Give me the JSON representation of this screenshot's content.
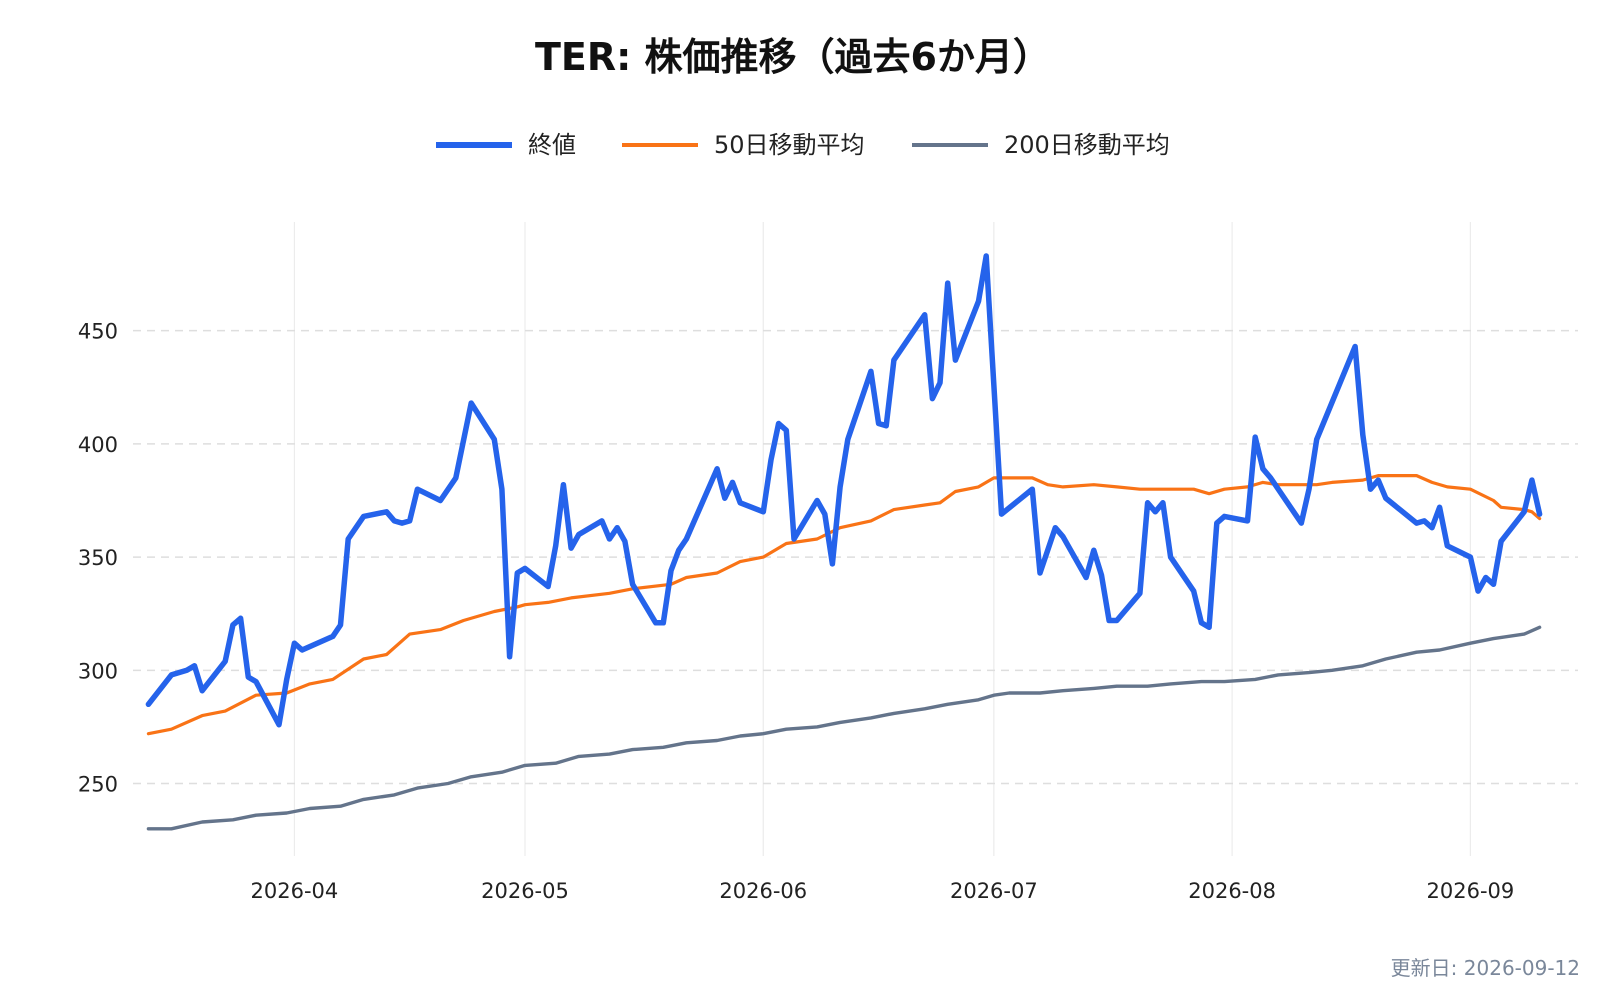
{
  "chart_data": {
    "type": "line",
    "title": "TER: 株価推移（過去6か月）",
    "xlabel": "",
    "ylabel": "",
    "xlim": [
      "2026-03-11",
      "2026-09-15"
    ],
    "ylim": [
      218,
      498
    ],
    "x_ticks": [
      "2026-04-01",
      "2026-05-01",
      "2026-06-01",
      "2026-07-01",
      "2026-08-01",
      "2026-09-01"
    ],
    "x_tick_labels": [
      "2026-04",
      "2026-05",
      "2026-06",
      "2026-07",
      "2026-08",
      "2026-09"
    ],
    "y_ticks": [
      250,
      300,
      350,
      400,
      450
    ],
    "grid": {
      "horizontal": true,
      "vertical": true,
      "horizontal_style": "dashed"
    },
    "legend": {
      "position": "top-center"
    },
    "footnote": "更新日: 2026-09-12",
    "series": [
      {
        "name": "終値",
        "color": "#2563eb",
        "points": [
          [
            "2026-03-13",
            285
          ],
          [
            "2026-03-16",
            298
          ],
          [
            "2026-03-18",
            300
          ],
          [
            "2026-03-19",
            302
          ],
          [
            "2026-03-20",
            291
          ],
          [
            "2026-03-23",
            304
          ],
          [
            "2026-03-24",
            320
          ],
          [
            "2026-03-25",
            323
          ],
          [
            "2026-03-26",
            297
          ],
          [
            "2026-03-27",
            295
          ],
          [
            "2026-03-30",
            276
          ],
          [
            "2026-03-31",
            296
          ],
          [
            "2026-04-01",
            312
          ],
          [
            "2026-04-02",
            309
          ],
          [
            "2026-04-06",
            315
          ],
          [
            "2026-04-07",
            320
          ],
          [
            "2026-04-08",
            358
          ],
          [
            "2026-04-09",
            363
          ],
          [
            "2026-04-10",
            368
          ],
          [
            "2026-04-13",
            370
          ],
          [
            "2026-04-14",
            366
          ],
          [
            "2026-04-15",
            365
          ],
          [
            "2026-04-16",
            366
          ],
          [
            "2026-04-17",
            380
          ],
          [
            "2026-04-20",
            375
          ],
          [
            "2026-04-22",
            385
          ],
          [
            "2026-04-24",
            418
          ],
          [
            "2026-04-27",
            402
          ],
          [
            "2026-04-28",
            380
          ],
          [
            "2026-04-29",
            306
          ],
          [
            "2026-04-30",
            343
          ],
          [
            "2026-05-01",
            345
          ],
          [
            "2026-05-04",
            337
          ],
          [
            "2026-05-05",
            355
          ],
          [
            "2026-05-06",
            382
          ],
          [
            "2026-05-07",
            354
          ],
          [
            "2026-05-08",
            360
          ],
          [
            "2026-05-11",
            366
          ],
          [
            "2026-05-12",
            358
          ],
          [
            "2026-05-13",
            363
          ],
          [
            "2026-05-14",
            357
          ],
          [
            "2026-05-15",
            338
          ],
          [
            "2026-05-18",
            321
          ],
          [
            "2026-05-19",
            321
          ],
          [
            "2026-05-20",
            344
          ],
          [
            "2026-05-21",
            353
          ],
          [
            "2026-05-22",
            358
          ],
          [
            "2026-05-26",
            389
          ],
          [
            "2026-05-27",
            376
          ],
          [
            "2026-05-28",
            383
          ],
          [
            "2026-05-29",
            374
          ],
          [
            "2026-06-01",
            370
          ],
          [
            "2026-06-02",
            393
          ],
          [
            "2026-06-03",
            409
          ],
          [
            "2026-06-04",
            406
          ],
          [
            "2026-06-05",
            358
          ],
          [
            "2026-06-08",
            375
          ],
          [
            "2026-06-09",
            369
          ],
          [
            "2026-06-10",
            347
          ],
          [
            "2026-06-11",
            381
          ],
          [
            "2026-06-12",
            402
          ],
          [
            "2026-06-15",
            432
          ],
          [
            "2026-06-16",
            409
          ],
          [
            "2026-06-17",
            408
          ],
          [
            "2026-06-18",
            437
          ],
          [
            "2026-06-22",
            457
          ],
          [
            "2026-06-23",
            420
          ],
          [
            "2026-06-24",
            427
          ],
          [
            "2026-06-25",
            471
          ],
          [
            "2026-06-26",
            437
          ],
          [
            "2026-06-29",
            463
          ],
          [
            "2026-06-30",
            483
          ],
          [
            "2026-07-02",
            369
          ],
          [
            "2026-07-06",
            380
          ],
          [
            "2026-07-07",
            343
          ],
          [
            "2026-07-08",
            353
          ],
          [
            "2026-07-09",
            363
          ],
          [
            "2026-07-10",
            359
          ],
          [
            "2026-07-13",
            341
          ],
          [
            "2026-07-14",
            353
          ],
          [
            "2026-07-15",
            342
          ],
          [
            "2026-07-16",
            322
          ],
          [
            "2026-07-17",
            322
          ],
          [
            "2026-07-20",
            334
          ],
          [
            "2026-07-21",
            374
          ],
          [
            "2026-07-22",
            370
          ],
          [
            "2026-07-23",
            374
          ],
          [
            "2026-07-24",
            350
          ],
          [
            "2026-07-27",
            335
          ],
          [
            "2026-07-28",
            321
          ],
          [
            "2026-07-29",
            319
          ],
          [
            "2026-07-30",
            365
          ],
          [
            "2026-07-31",
            368
          ],
          [
            "2026-08-03",
            366
          ],
          [
            "2026-08-04",
            403
          ],
          [
            "2026-08-05",
            389
          ],
          [
            "2026-08-06",
            385
          ],
          [
            "2026-08-10",
            365
          ],
          [
            "2026-08-11",
            380
          ],
          [
            "2026-08-12",
            402
          ],
          [
            "2026-08-17",
            443
          ],
          [
            "2026-08-18",
            404
          ],
          [
            "2026-08-19",
            380
          ],
          [
            "2026-08-20",
            384
          ],
          [
            "2026-08-21",
            376
          ],
          [
            "2026-08-25",
            365
          ],
          [
            "2026-08-26",
            366
          ],
          [
            "2026-08-27",
            363
          ],
          [
            "2026-08-28",
            372
          ],
          [
            "2026-08-29",
            355
          ],
          [
            "2026-09-01",
            350
          ],
          [
            "2026-09-02",
            335
          ],
          [
            "2026-09-03",
            341
          ],
          [
            "2026-09-04",
            338
          ],
          [
            "2026-09-05",
            357
          ],
          [
            "2026-09-08",
            370
          ],
          [
            "2026-09-09",
            384
          ],
          [
            "2026-09-10",
            369
          ]
        ]
      },
      {
        "name": "50日移動平均",
        "color": "#f97316",
        "points": [
          [
            "2026-03-13",
            272
          ],
          [
            "2026-03-16",
            274
          ],
          [
            "2026-03-20",
            280
          ],
          [
            "2026-03-23",
            282
          ],
          [
            "2026-03-27",
            289
          ],
          [
            "2026-03-31",
            290
          ],
          [
            "2026-04-03",
            294
          ],
          [
            "2026-04-06",
            296
          ],
          [
            "2026-04-10",
            305
          ],
          [
            "2026-04-13",
            307
          ],
          [
            "2026-04-16",
            316
          ],
          [
            "2026-04-20",
            318
          ],
          [
            "2026-04-23",
            322
          ],
          [
            "2026-04-27",
            326
          ],
          [
            "2026-04-30",
            328
          ],
          [
            "2026-05-01",
            329
          ],
          [
            "2026-05-04",
            330
          ],
          [
            "2026-05-07",
            332
          ],
          [
            "2026-05-12",
            334
          ],
          [
            "2026-05-15",
            336
          ],
          [
            "2026-05-20",
            338
          ],
          [
            "2026-05-22",
            341
          ],
          [
            "2026-05-26",
            343
          ],
          [
            "2026-05-29",
            348
          ],
          [
            "2026-06-01",
            350
          ],
          [
            "2026-06-04",
            356
          ],
          [
            "2026-06-08",
            358
          ],
          [
            "2026-06-11",
            363
          ],
          [
            "2026-06-15",
            366
          ],
          [
            "2026-06-18",
            371
          ],
          [
            "2026-06-22",
            373
          ],
          [
            "2026-06-24",
            374
          ],
          [
            "2026-06-26",
            379
          ],
          [
            "2026-06-29",
            381
          ],
          [
            "2026-07-01",
            385
          ],
          [
            "2026-07-03",
            385
          ],
          [
            "2026-07-06",
            385
          ],
          [
            "2026-07-08",
            382
          ],
          [
            "2026-07-10",
            381
          ],
          [
            "2026-07-14",
            382
          ],
          [
            "2026-07-17",
            381
          ],
          [
            "2026-07-20",
            380
          ],
          [
            "2026-07-22",
            380
          ],
          [
            "2026-07-27",
            380
          ],
          [
            "2026-07-29",
            378
          ],
          [
            "2026-07-31",
            380
          ],
          [
            "2026-08-03",
            381
          ],
          [
            "2026-08-05",
            383
          ],
          [
            "2026-08-07",
            382
          ],
          [
            "2026-08-12",
            382
          ],
          [
            "2026-08-14",
            383
          ],
          [
            "2026-08-18",
            384
          ],
          [
            "2026-08-20",
            386
          ],
          [
            "2026-08-25",
            386
          ],
          [
            "2026-08-27",
            383
          ],
          [
            "2026-08-29",
            381
          ],
          [
            "2026-09-01",
            380
          ],
          [
            "2026-09-04",
            375
          ],
          [
            "2026-09-05",
            372
          ],
          [
            "2026-09-08",
            371
          ],
          [
            "2026-09-09",
            370
          ],
          [
            "2026-09-10",
            367
          ]
        ]
      },
      {
        "name": "200日移動平均",
        "color": "#64748b",
        "points": [
          [
            "2026-03-13",
            230
          ],
          [
            "2026-03-16",
            230
          ],
          [
            "2026-03-20",
            233
          ],
          [
            "2026-03-24",
            234
          ],
          [
            "2026-03-27",
            236
          ],
          [
            "2026-03-31",
            237
          ],
          [
            "2026-04-03",
            239
          ],
          [
            "2026-04-07",
            240
          ],
          [
            "2026-04-10",
            243
          ],
          [
            "2026-04-14",
            245
          ],
          [
            "2026-04-17",
            248
          ],
          [
            "2026-04-21",
            250
          ],
          [
            "2026-04-24",
            253
          ],
          [
            "2026-04-28",
            255
          ],
          [
            "2026-05-01",
            258
          ],
          [
            "2026-05-05",
            259
          ],
          [
            "2026-05-08",
            262
          ],
          [
            "2026-05-12",
            263
          ],
          [
            "2026-05-15",
            265
          ],
          [
            "2026-05-19",
            266
          ],
          [
            "2026-05-22",
            268
          ],
          [
            "2026-05-26",
            269
          ],
          [
            "2026-05-29",
            271
          ],
          [
            "2026-06-01",
            272
          ],
          [
            "2026-06-04",
            274
          ],
          [
            "2026-06-08",
            275
          ],
          [
            "2026-06-11",
            277
          ],
          [
            "2026-06-15",
            279
          ],
          [
            "2026-06-18",
            281
          ],
          [
            "2026-06-22",
            283
          ],
          [
            "2026-06-25",
            285
          ],
          [
            "2026-06-29",
            287
          ],
          [
            "2026-07-01",
            289
          ],
          [
            "2026-07-03",
            290
          ],
          [
            "2026-07-07",
            290
          ],
          [
            "2026-07-10",
            291
          ],
          [
            "2026-07-14",
            292
          ],
          [
            "2026-07-17",
            293
          ],
          [
            "2026-07-21",
            293
          ],
          [
            "2026-07-24",
            294
          ],
          [
            "2026-07-28",
            295
          ],
          [
            "2026-07-31",
            295
          ],
          [
            "2026-08-04",
            296
          ],
          [
            "2026-08-07",
            298
          ],
          [
            "2026-08-11",
            299
          ],
          [
            "2026-08-14",
            300
          ],
          [
            "2026-08-18",
            302
          ],
          [
            "2026-08-21",
            305
          ],
          [
            "2026-08-25",
            308
          ],
          [
            "2026-08-28",
            309
          ],
          [
            "2026-09-01",
            312
          ],
          [
            "2026-09-04",
            314
          ],
          [
            "2026-09-08",
            316
          ],
          [
            "2026-09-10",
            319
          ]
        ]
      }
    ]
  }
}
